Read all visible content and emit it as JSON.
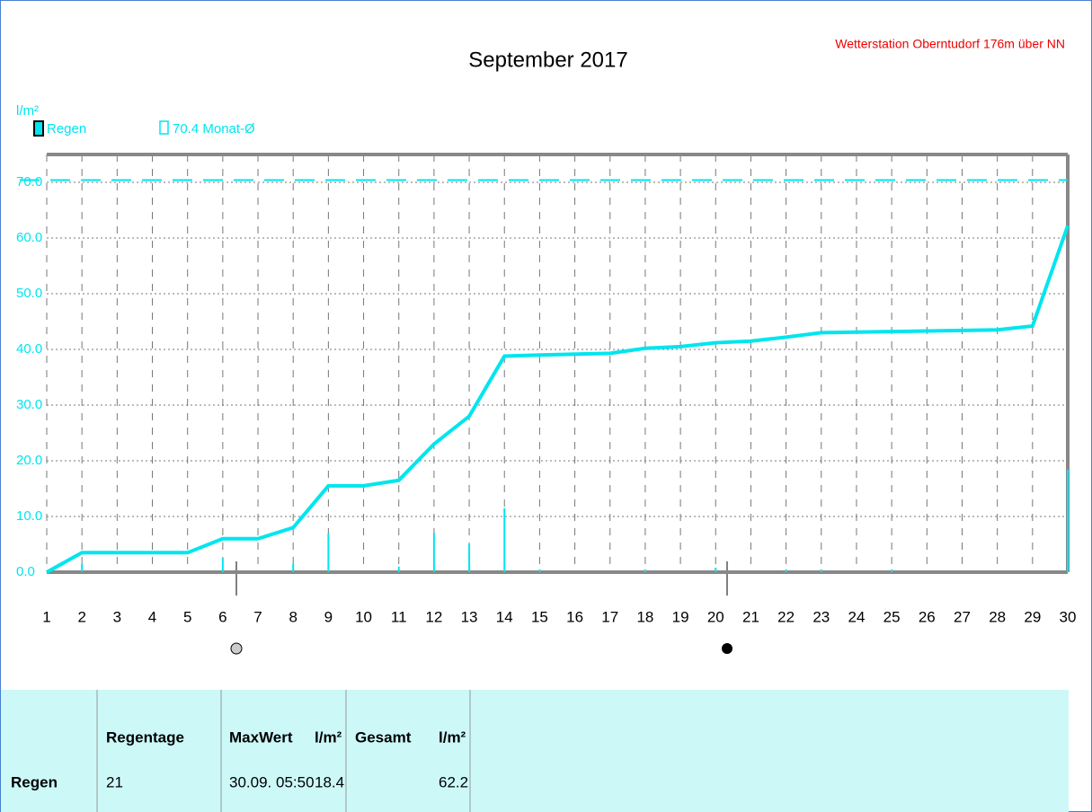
{
  "chart_data": {
    "type": "line",
    "title": "September 2017",
    "subtitle": "Wetterstation Oberntudorf 176m über NN",
    "y_label": "l/m²",
    "xlim": [
      1,
      30
    ],
    "xticks": [
      1,
      2,
      3,
      4,
      5,
      6,
      7,
      8,
      9,
      10,
      11,
      12,
      13,
      14,
      15,
      16,
      17,
      18,
      19,
      20,
      21,
      22,
      23,
      24,
      25,
      26,
      27,
      28,
      29,
      30
    ],
    "ylim": [
      0,
      75
    ],
    "yticks": [
      {
        "value": 0,
        "label": "0.0"
      },
      {
        "value": 10,
        "label": "10.0"
      },
      {
        "value": 20,
        "label": "20.0"
      },
      {
        "value": 30,
        "label": "30.0"
      },
      {
        "value": 40,
        "label": "40.0"
      },
      {
        "value": 50,
        "label": "50.0"
      },
      {
        "value": 60,
        "label": "60.0"
      },
      {
        "value": 70,
        "label": "70.0"
      }
    ],
    "grid": true,
    "series": [
      {
        "name": "Regen",
        "color": "#00e5ee",
        "x": [
          1,
          2,
          5,
          6,
          7,
          8,
          9,
          10,
          11,
          12,
          13,
          14,
          15,
          17,
          18,
          19,
          20,
          21,
          22,
          23,
          25,
          28,
          29,
          30
        ],
        "values": [
          0,
          3.5,
          3.5,
          6,
          6,
          8,
          15.5,
          15.5,
          16.5,
          23,
          28,
          38.8,
          39,
          39.3,
          40.2,
          40.5,
          41.2,
          41.5,
          42.2,
          43,
          43.2,
          43.5,
          44.2,
          62.2
        ]
      }
    ],
    "bars": {
      "color": "#00e5ee",
      "x": [
        2,
        6,
        8,
        9,
        11,
        12,
        13,
        14,
        15,
        18,
        20,
        22,
        23,
        25,
        30
      ],
      "values": [
        1.5,
        2.5,
        1.5,
        7,
        1,
        7,
        5,
        11.5,
        0.5,
        0.5,
        0.8,
        0.5,
        0.5,
        0.5,
        18.4
      ]
    },
    "reference": {
      "value": 70.4,
      "label": "70.4 Monat-Ø",
      "color": "#00e5ee"
    }
  },
  "table": {
    "headers": [
      "Regentage",
      "MaxWert",
      "l/m²",
      "Gesamt",
      "l/m²"
    ],
    "row": [
      "Regen",
      "21",
      "30.09.  05:50",
      "18.4",
      "62.2"
    ]
  }
}
